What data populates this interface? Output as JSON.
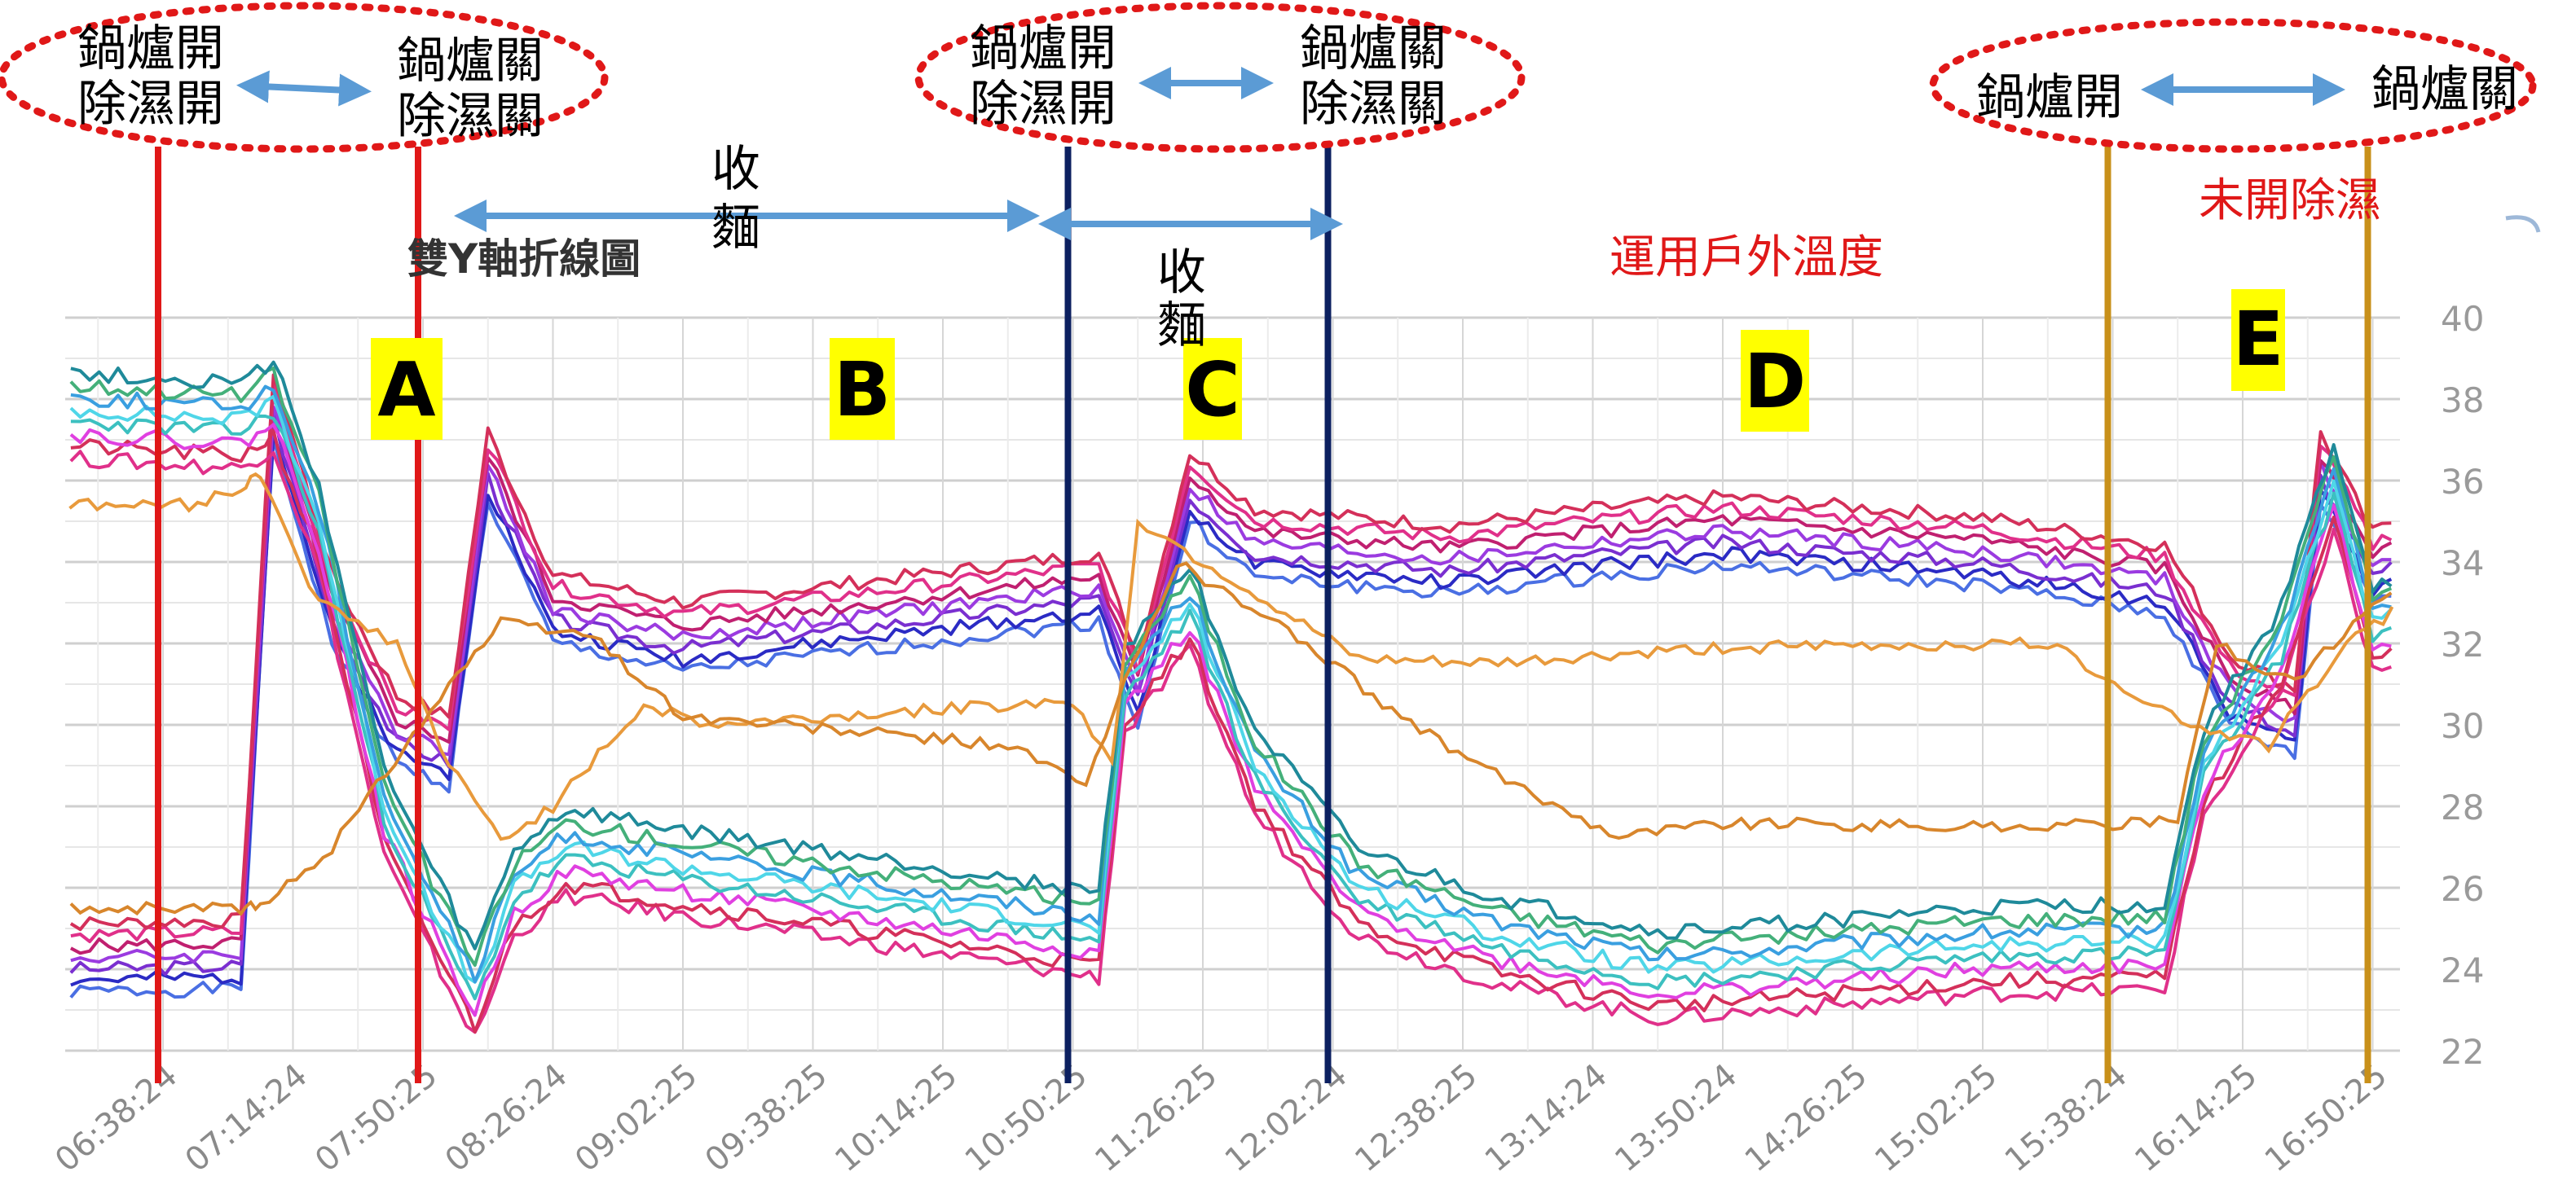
{
  "chart_data": {
    "type": "line",
    "title": "雙Y軸折線圖",
    "subtitle": "運用戶外溫度",
    "y_axis_right": {
      "ticks": [
        40,
        38,
        36,
        34,
        32,
        30,
        28,
        26,
        24,
        22
      ],
      "ylim": [
        22,
        40
      ]
    },
    "x_tick_labels": [
      "06:38:24",
      "07:14:24",
      "07:50:25",
      "08:26:24",
      "09:02:25",
      "09:38:25",
      "10:14:25",
      "10:50:25",
      "11:26:25",
      "12:02:24",
      "12:38:25",
      "13:14:24",
      "13:50:24",
      "14:26:25",
      "15:02:25",
      "15:38:24",
      "16:14:25",
      "16:50:25"
    ],
    "grid": true,
    "legend": "none",
    "series_colors": [
      "#4a6fe3",
      "#2b2bc4",
      "#7a2fd0",
      "#9b3be0",
      "#c02070",
      "#e0308a",
      "#d4305a",
      "#e040e0",
      "#3cc0c0",
      "#4fd6e8",
      "#3a9fe0",
      "#44b07a",
      "#1f8a9a",
      "#e89a3c",
      "#d8862c",
      "#c26a5a"
    ],
    "series_groups": {
      "high_group_count": 7,
      "low_group_count": 8,
      "orange_count": 2
    },
    "regions": [
      {
        "label": "A",
        "start_time": "06:38:24",
        "end_time": "07:50:25"
      },
      {
        "label": "B",
        "start_time": "07:50:25",
        "end_time": "10:50:25"
      },
      {
        "label": "C",
        "start_time": "10:50:25",
        "end_time": "12:02:24"
      },
      {
        "label": "D",
        "start_time": "12:02:24",
        "end_time": "15:38:24"
      },
      {
        "label": "E",
        "start_time": "15:38:24",
        "end_time": "16:50:25"
      }
    ],
    "annotations": {
      "group1": {
        "left_line1": "鍋爐開",
        "left_line2": "除濕開",
        "right_line1": "鍋爐關",
        "right_line2": "除濕關"
      },
      "group2": {
        "left_line1": "鍋爐開",
        "left_line2": "除濕開",
        "right_line1": "鍋爐關",
        "right_line2": "除濕關"
      },
      "group3": {
        "left": "鍋爐開",
        "right": "鍋爐關"
      },
      "harvest1_line1": "收",
      "harvest1_line2": "麵",
      "harvest2_line1": "收",
      "harvest2_line2": "麵",
      "no_dehumidify": "未開除濕"
    },
    "vertical_lines": [
      {
        "time": "06:38:24",
        "color": "#e01818"
      },
      {
        "time": "07:50:25",
        "color": "#e01818"
      },
      {
        "time": "10:50:25",
        "color": "#0c2060"
      },
      {
        "time": "12:02:24",
        "color": "#0c2060"
      },
      {
        "time": "15:38:24",
        "color": "#c8901a"
      },
      {
        "time": "16:50:25",
        "color": "#c8901a"
      }
    ],
    "colors": {
      "region_label_bg": "#ffff00",
      "ellipse_stroke": "#e01818",
      "arrow": "#5b9bd5",
      "red_text": "#e01818"
    }
  }
}
